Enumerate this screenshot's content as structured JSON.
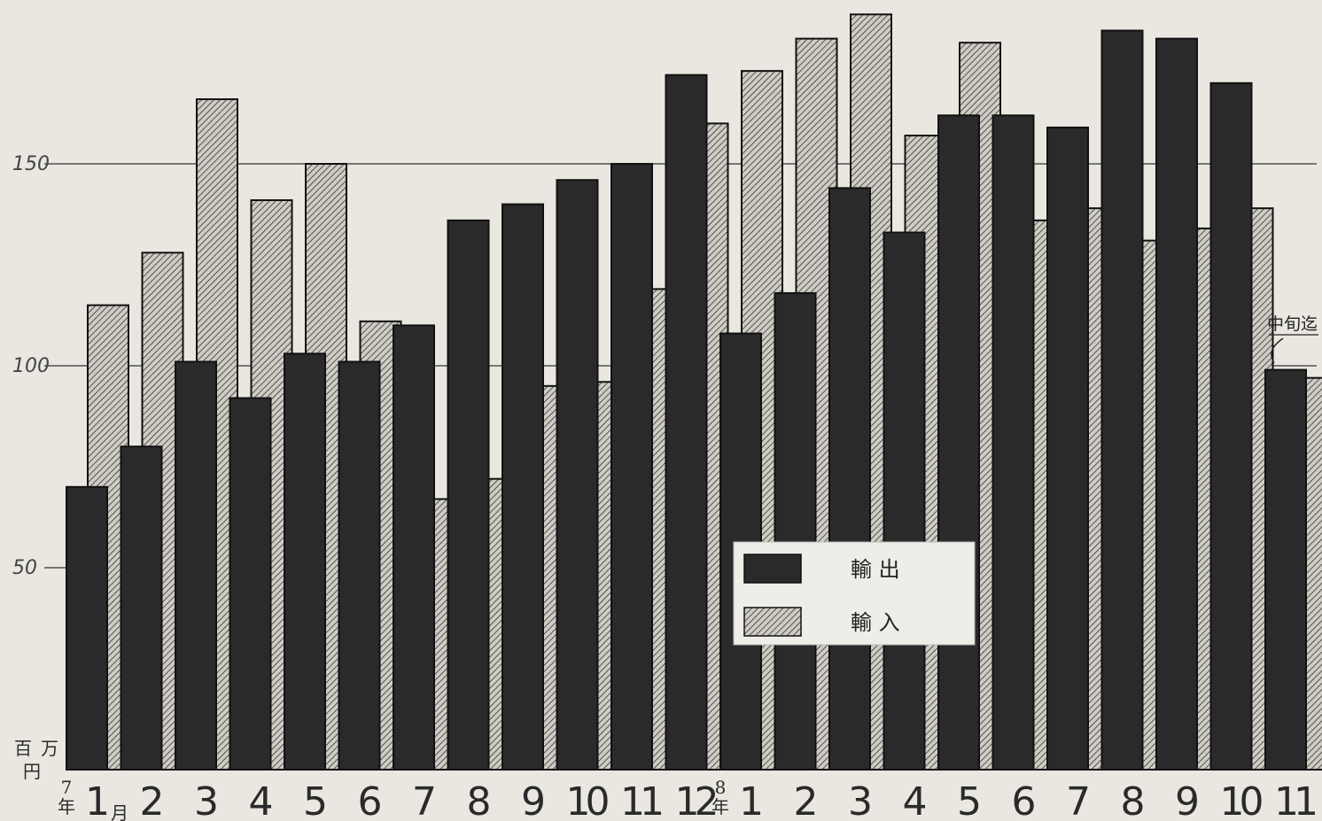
{
  "chart_data": {
    "type": "bar",
    "unit_label": [
      "百",
      "万",
      "円"
    ],
    "yticks": [
      50,
      100,
      150
    ],
    "ylim": [
      0,
      188
    ],
    "year_markers": [
      {
        "index": 0,
        "text": [
          "7",
          "年"
        ]
      },
      {
        "index": 12,
        "text": [
          "8",
          "年"
        ]
      }
    ],
    "month_marker": {
      "index": 0,
      "text": "月"
    },
    "categories": [
      "1",
      "2",
      "3",
      "4",
      "5",
      "6",
      "7",
      "8",
      "9",
      "10",
      "11",
      "12",
      "1",
      "2",
      "3",
      "4",
      "5",
      "6",
      "7",
      "8",
      "9",
      "10",
      "11"
    ],
    "series": [
      {
        "name": "輸 出",
        "values": [
          70,
          80,
          101,
          92,
          103,
          101,
          110,
          136,
          140,
          146,
          150,
          172,
          108,
          118,
          144,
          133,
          162,
          162,
          159,
          183,
          181,
          170,
          99
        ]
      },
      {
        "name": "輸 入",
        "values": [
          115,
          128,
          166,
          141,
          150,
          111,
          67,
          72,
          95,
          96,
          119,
          160,
          173,
          181,
          187,
          157,
          180,
          136,
          139,
          131,
          134,
          139,
          97
        ]
      }
    ],
    "annotation": {
      "text": "中旬迄",
      "index": 22
    },
    "legend": "center-bottom",
    "grid": true
  },
  "colors": {
    "export": "#2a2a2a",
    "import_bg": "#cfccc4",
    "import_hatch": "#333333",
    "grid": "#333333"
  }
}
